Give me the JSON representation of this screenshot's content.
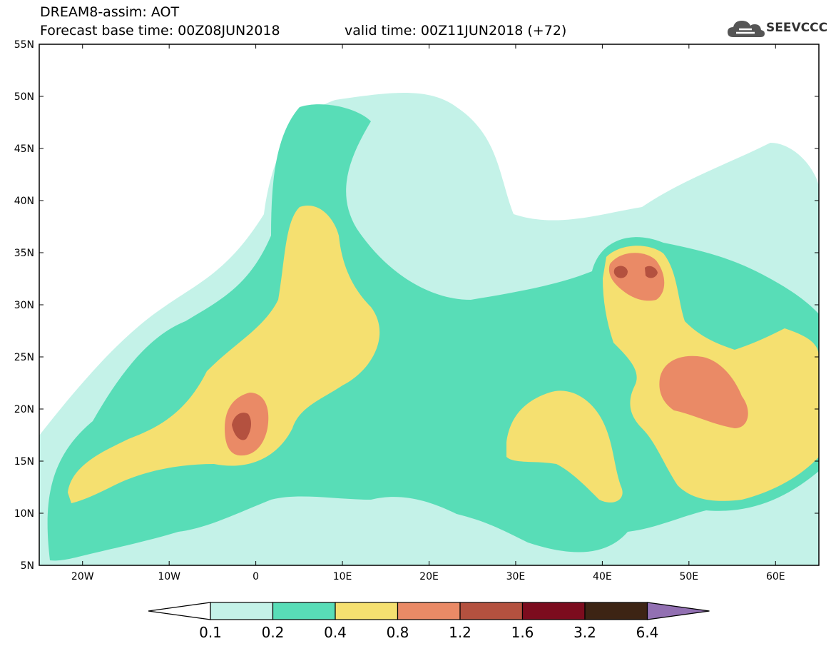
{
  "header": {
    "title": "DREAM8-assim: AOT",
    "base_time": "Forecast base time: 00Z08JUN2018",
    "valid_time": "valid time: 00Z11JUN2018 (+72)"
  },
  "logo": {
    "text": "SEEVCCC",
    "icon": "cloud-icon"
  },
  "map": {
    "lat_labels": [
      "55N",
      "50N",
      "45N",
      "40N",
      "35N",
      "30N",
      "25N",
      "20N",
      "15N",
      "10N",
      "5N"
    ],
    "lon_labels": [
      "20W",
      "10W",
      "0",
      "10E",
      "20E",
      "30E",
      "40E",
      "50E",
      "60E"
    ],
    "lat_values": [
      55,
      50,
      45,
      40,
      35,
      30,
      25,
      20,
      15,
      10,
      5
    ],
    "lon_values": [
      -20,
      -10,
      0,
      10,
      20,
      30,
      40,
      50,
      60
    ],
    "lon_range": [
      -25,
      65
    ],
    "lat_range": [
      5,
      55
    ]
  },
  "colorbar": {
    "labels": [
      "0.1",
      "0.2",
      "0.4",
      "0.8",
      "1.2",
      "1.6",
      "3.2",
      "6.4"
    ],
    "colors": [
      "#ffffff",
      "#c4f2e8",
      "#58ddb7",
      "#f5e070",
      "#ea8a66",
      "#b4513f",
      "#7c0c1e",
      "#3d2414",
      "#9270b2"
    ]
  }
}
